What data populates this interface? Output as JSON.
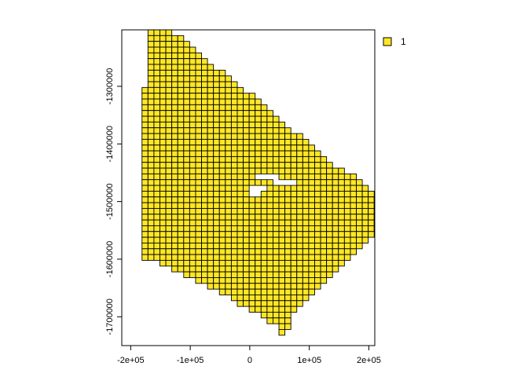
{
  "chart_data": {
    "type": "grid-map",
    "title": "",
    "xlabel": "",
    "ylabel": "",
    "xlim": [
      -215000,
      210000
    ],
    "ylim": [
      -1750000,
      -1202000
    ],
    "x_ticks": [
      {
        "value": -200000,
        "label": "-2e+05"
      },
      {
        "value": -100000,
        "label": "-1e+05"
      },
      {
        "value": 0,
        "label": "0"
      },
      {
        "value": 100000,
        "label": "1e+05"
      },
      {
        "value": 200000,
        "label": "2e+05"
      }
    ],
    "y_ticks": [
      {
        "value": -1300000,
        "label": "-1300000"
      },
      {
        "value": -1400000,
        "label": "-1400000"
      },
      {
        "value": -1500000,
        "label": "-1500000"
      },
      {
        "value": -1600000,
        "label": "-1600000"
      },
      {
        "value": -1700000,
        "label": "-1700000"
      }
    ],
    "cell_size": 10000,
    "grid_origin_x": -221000,
    "grid_top_y": -1202000,
    "grid_rows": 55,
    "fill_color": "#fde725",
    "edge_color": "#000000",
    "rows": [
      [
        5,
        8
      ],
      [
        5,
        10
      ],
      [
        5,
        11
      ],
      [
        5,
        12
      ],
      [
        5,
        13
      ],
      [
        5,
        14
      ],
      [
        5,
        15
      ],
      [
        5,
        17
      ],
      [
        5,
        18
      ],
      [
        5,
        19
      ],
      [
        4,
        20
      ],
      [
        4,
        22
      ],
      [
        4,
        23
      ],
      [
        4,
        24
      ],
      [
        4,
        25
      ],
      [
        4,
        26
      ],
      [
        4,
        27
      ],
      [
        4,
        28
      ],
      [
        4,
        30
      ],
      [
        4,
        31
      ],
      [
        4,
        32
      ],
      [
        4,
        33
      ],
      [
        4,
        34
      ],
      [
        4,
        35
      ],
      [
        4,
        37
      ],
      [
        4,
        39
      ],
      [
        4,
        40
      ],
      [
        4,
        41
      ],
      [
        4,
        42
      ],
      [
        4,
        43
      ],
      [
        4,
        44
      ],
      [
        4,
        45
      ],
      [
        4,
        45
      ],
      [
        4,
        44
      ],
      [
        4,
        43
      ],
      [
        4,
        42
      ],
      [
        4,
        41
      ],
      [
        4,
        40
      ],
      [
        4,
        39
      ],
      [
        4,
        38
      ],
      [
        7,
        37
      ],
      [
        9,
        36
      ],
      [
        11,
        35
      ],
      [
        13,
        34
      ],
      [
        15,
        33
      ],
      [
        17,
        32
      ],
      [
        19,
        31
      ],
      [
        20,
        30
      ],
      [
        22,
        29
      ],
      [
        24,
        28
      ],
      [
        25,
        28
      ],
      [
        27,
        28
      ],
      [
        27,
        27
      ],
      [
        28,
        27
      ],
      [
        29,
        27
      ]
    ],
    "holes": [
      [
        25,
        23
      ],
      [
        25,
        24
      ],
      [
        25,
        25
      ],
      [
        25,
        26
      ],
      [
        26,
        26
      ],
      [
        26,
        27
      ],
      [
        26,
        28
      ],
      [
        26,
        29
      ],
      [
        27,
        22
      ],
      [
        27,
        23
      ],
      [
        27,
        24
      ],
      [
        28,
        22
      ],
      [
        28,
        23
      ]
    ],
    "legend": [
      {
        "label": "1",
        "color": "#fde725"
      }
    ]
  }
}
